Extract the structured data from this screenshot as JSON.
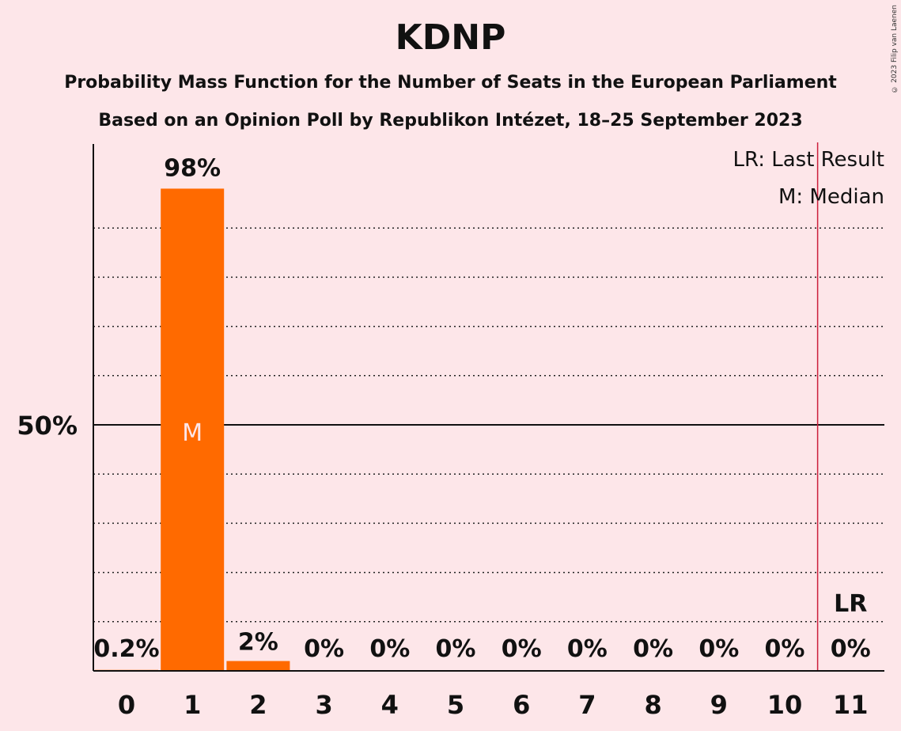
{
  "title": "KDNP",
  "subtitle1": "Probability Mass Function for the Number of Seats in the European Parliament",
  "subtitle2": "Based on an Opinion Poll by Republikon Intézet, 18–25 September 2023",
  "copyright": "© 2023 Filip van Laenen",
  "legend": {
    "lr": "LR: Last Result",
    "m": "M: Median"
  },
  "colors": {
    "bar": "#FF6A00",
    "background": "#FDE6E9",
    "last_result_line": "#CC1E3C"
  },
  "chart_data": {
    "type": "bar",
    "categories": [
      "0",
      "1",
      "2",
      "3",
      "4",
      "5",
      "6",
      "7",
      "8",
      "9",
      "10",
      "11"
    ],
    "values": [
      0.2,
      98,
      2,
      0,
      0,
      0,
      0,
      0,
      0,
      0,
      0,
      0
    ],
    "value_labels": [
      "0.2%",
      "98%",
      "2%",
      "0%",
      "0%",
      "0%",
      "0%",
      "0%",
      "0%",
      "0%",
      "0%",
      "0%"
    ],
    "ylim": [
      0,
      100
    ],
    "y_tick_label": "50%",
    "y_tick_value": 50,
    "median_category": "1",
    "median_marker": "M",
    "last_result_category": "11",
    "last_result_marker": "LR",
    "gridlines": "dotted every 10%",
    "legend_position": "top-right"
  }
}
